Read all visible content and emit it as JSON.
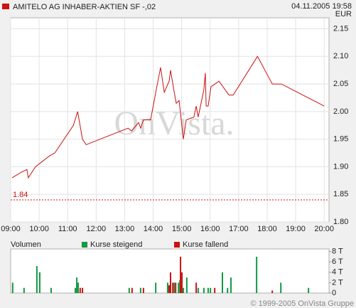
{
  "chart_data": [
    {
      "type": "line",
      "title": "AMITELO AG INHABER-AKTIEN SF -,02",
      "date": "04.11.2005 19:58",
      "currency": "EUR",
      "watermark": "OnVista.",
      "color": "#cc1111",
      "x": [
        9.05,
        9.37,
        9.57,
        9.62,
        9.87,
        10.37,
        10.55,
        11.2,
        11.35,
        11.52,
        11.65,
        13.12,
        13.24,
        13.49,
        13.56,
        13.66,
        13.91,
        14.11,
        14.26,
        14.39,
        14.56,
        14.61,
        14.74,
        14.81,
        14.91,
        15.06,
        15.16,
        15.43,
        15.51,
        15.58,
        15.68,
        15.78,
        15.83,
        15.86,
        15.93,
        16.03,
        16.31,
        16.66,
        16.81,
        17.66,
        18.18,
        18.5,
        20.0
      ],
      "values": [
        1.88,
        1.89,
        1.895,
        1.88,
        1.9,
        1.92,
        1.925,
        1.975,
        2.0,
        1.95,
        1.94,
        1.97,
        1.965,
        1.98,
        1.97,
        1.985,
        1.985,
        2.04,
        2.08,
        2.035,
        2.055,
        2.075,
        2.035,
        2.015,
        2.02,
        1.95,
        1.985,
        1.99,
        2.01,
        1.99,
        2.015,
        2.04,
        2.07,
        2.01,
        2.01,
        2.045,
        2.055,
        2.03,
        2.03,
        2.1,
        2.05,
        2.05,
        2.01
      ],
      "reference": {
        "value": 1.84,
        "color": "#cc1111"
      },
      "xlim": [
        9,
        20.17
      ],
      "ylim": [
        1.8,
        2.17
      ],
      "xticks": [
        {
          "value": 9,
          "label": "09:00"
        },
        {
          "value": 10,
          "label": "10:00"
        },
        {
          "value": 11,
          "label": "11:00"
        },
        {
          "value": 12,
          "label": "12:00"
        },
        {
          "value": 13,
          "label": "13:00"
        },
        {
          "value": 14,
          "label": "14:00"
        },
        {
          "value": 15,
          "label": "15:00"
        },
        {
          "value": 16,
          "label": "16:00"
        },
        {
          "value": 17,
          "label": "17:00"
        },
        {
          "value": 18,
          "label": "18:00"
        },
        {
          "value": 19,
          "label": "19:00"
        },
        {
          "value": 20,
          "label": "20:00"
        }
      ],
      "yticks": [
        {
          "value": 1.8,
          "label": "1.80"
        },
        1.85,
        {
          "value": 1.9,
          "label": "1.90"
        },
        1.95,
        {
          "value": 2.0,
          "label": "2.00"
        },
        2.05,
        {
          "value": 2.1,
          "label": "2.10"
        },
        2.15
      ],
      "grid": true
    },
    {
      "type": "bar",
      "title": "Volumen",
      "footer": "© 1999-2005 OnVista Gruppe",
      "xlim": [
        9,
        20.17
      ],
      "ylim": [
        0,
        8500
      ],
      "yticks": [
        0,
        {
          "value": 2000,
          "label": "2 T"
        },
        {
          "value": 4000,
          "label": "4 T"
        },
        {
          "value": 6000,
          "label": "6 T"
        },
        {
          "value": 8000,
          "label": "8 T"
        }
      ],
      "series": [
        {
          "name": "Kurse steigend",
          "color": "#119944",
          "x": [
            9.07,
            9.47,
            9.92,
            10.02,
            10.42,
            11.27,
            11.32,
            11.37,
            13.16,
            13.56,
            14.09,
            14.51,
            14.74,
            14.89,
            14.94,
            15.06,
            15.18,
            15.58,
            15.78,
            15.93,
            16.01,
            16.43,
            16.61,
            16.73,
            17.63,
            18.48,
            19.45
          ],
          "values": [
            2000,
            1000,
            5200,
            4000,
            1000,
            1000,
            3000,
            2000,
            1000,
            1000,
            2000,
            2000,
            2000,
            2000,
            2500,
            1000,
            3000,
            1000,
            1000,
            1000,
            1000,
            4000,
            1000,
            3000,
            7000,
            2000,
            1000
          ]
        },
        {
          "name": "Kurse fallend",
          "color": "#cc1111",
          "x": [
            11.44,
            11.52,
            13.26,
            13.66,
            14.56,
            14.61,
            14.69,
            14.79,
            14.96,
            15.01,
            15.51,
            16.16,
            18.18
          ],
          "values": [
            1000,
            1000,
            1000,
            1000,
            1500,
            4000,
            2000,
            2000,
            7000,
            4000,
            2000,
            1000,
            500
          ]
        }
      ]
    }
  ]
}
